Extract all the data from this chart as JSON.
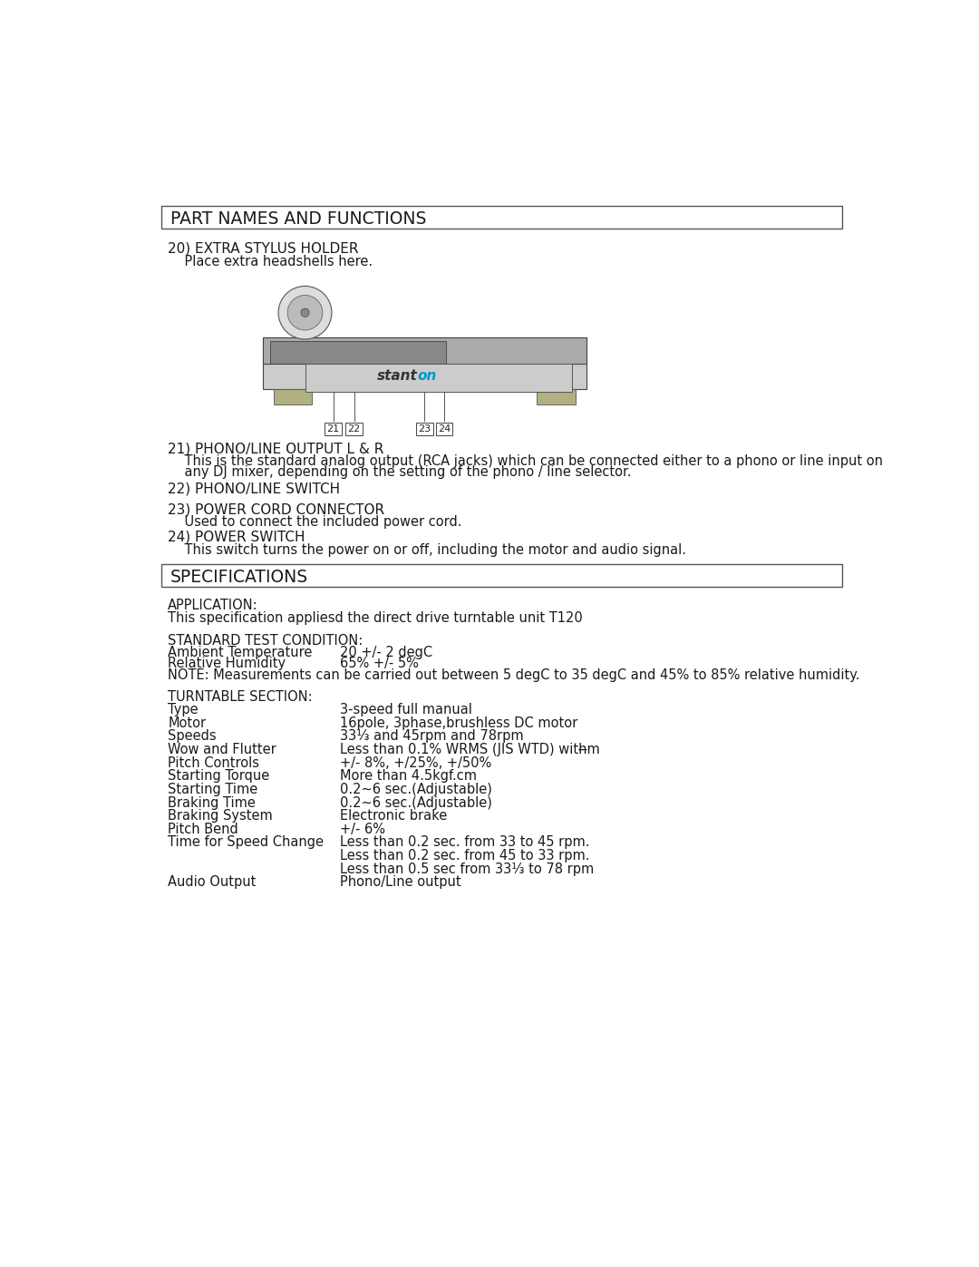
{
  "bg_color": "#ffffff",
  "text_color": "#1a1a1a",
  "section1_title": "PART NAMES AND FUNCTIONS",
  "item20_title": "20) EXTRA STYLUS HOLDER",
  "item20_desc": "    Place extra headshells here.",
  "item21_title": "21) PHONO/LINE OUTPUT L & R",
  "item21_desc1": "    This is the standard analog output (RCA jacks) which can be connected either to a phono or line input on",
  "item21_desc2": "    any DJ mixer, depending on the setting of the phono / line selector.",
  "item22_title": "22) PHONO/LINE SWITCH",
  "item23_title": "23) POWER CORD CONNECTOR",
  "item23_desc": "    Used to connect the included power cord.",
  "item24_title": "24) POWER SWITCH",
  "item24_desc": "    This switch turns the power on or off, including the motor and audio signal.",
  "section2_title": "SPECIFICATIONS",
  "app_label": "APPLICATION:",
  "app_desc": "This specification appliesd the direct drive turntable unit T120",
  "stc_label": "STANDARD TEST CONDITION:",
  "stc_row1_label": "Ambient Temperature",
  "stc_row1_val": "20 +/- 2 degC",
  "stc_row2_label": "Relative Humidity",
  "stc_row2_val": "65% +/- 5%",
  "stc_note": "NOTE: Measurements can be carried out between 5 degC to 35 degC and 45% to 85% relative humidity.",
  "ts_label": "TURNTABLE SECTION:",
  "ts_col1": 65,
  "ts_col2": 310,
  "ts_rows": [
    [
      "Type",
      "3-speed full manual"
    ],
    [
      "Motor",
      "16pole, 3phase,brushless DC motor"
    ],
    [
      "Speeds",
      "33⅓ and 45rpm and 78rpm"
    ],
    [
      "Wow and Flutter",
      "Less than 0.1% WRMS (JIS WTD) with̶̶̶̶̶̶̶̶m"
    ],
    [
      "Pitch Controls",
      "+/- 8%, +/25%, +/50%"
    ],
    [
      "Starting Torque",
      "More than 4.5kgf.cm"
    ],
    [
      "Starting Time",
      "0.2~6 sec.(Adjustable)"
    ],
    [
      "Braking Time",
      "0.2~6 sec.(Adjustable)"
    ],
    [
      "Braking System",
      "Electronic brake"
    ],
    [
      "Pitch Bend",
      "+/- 6%"
    ],
    [
      "Time for Speed Change",
      "Less than 0.2 sec. from 33 to 45 rpm.\nLess than 0.2 sec. from 45 to 33 rpm.\nLess than 0.5 sec from 33⅓ to 78 rpm"
    ],
    [
      "Audio Output",
      "Phono/Line output"
    ]
  ]
}
